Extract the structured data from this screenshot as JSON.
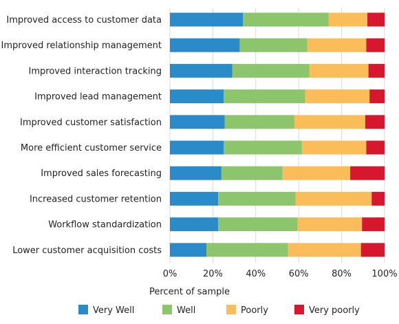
{
  "chart_data": {
    "type": "bar",
    "orientation": "horizontal",
    "stacked": true,
    "normalized": true,
    "title": "",
    "xlabel": "Percent of sample",
    "ylabel": "",
    "xlim": [
      0,
      100
    ],
    "x_ticks": [
      "0%",
      "20%",
      "40%",
      "60%",
      "80%",
      "100%"
    ],
    "grid": true,
    "legend_position": "bottom",
    "categories": [
      "Improved access to customer data",
      "Improved relationship management",
      "Improved interaction tracking",
      "Improved lead management",
      "Improved customer satisfaction",
      "More efficient customer service",
      "Improved sales forecasting",
      "Increased customer retention",
      "Workflow standardization",
      "Lower customer acquisition costs"
    ],
    "series": [
      {
        "name": "Very Well",
        "color": "#2b8ac8",
        "values": [
          34,
          32.5,
          29,
          25,
          25.5,
          25,
          24,
          22.5,
          22.5,
          17
        ]
      },
      {
        "name": "Well",
        "color": "#8cc56b",
        "values": [
          40,
          31.5,
          36,
          38,
          32.5,
          36.5,
          28.5,
          36,
          37,
          38
        ]
      },
      {
        "name": "Poorly",
        "color": "#fbbc5a",
        "values": [
          18,
          27.5,
          27.5,
          30,
          33,
          30,
          31.5,
          35.5,
          30,
          34
        ]
      },
      {
        "name": "Very poorly",
        "color": "#d7172e",
        "values": [
          8,
          8.5,
          7.5,
          7,
          9,
          8.5,
          16,
          6,
          10.5,
          11
        ]
      }
    ]
  }
}
